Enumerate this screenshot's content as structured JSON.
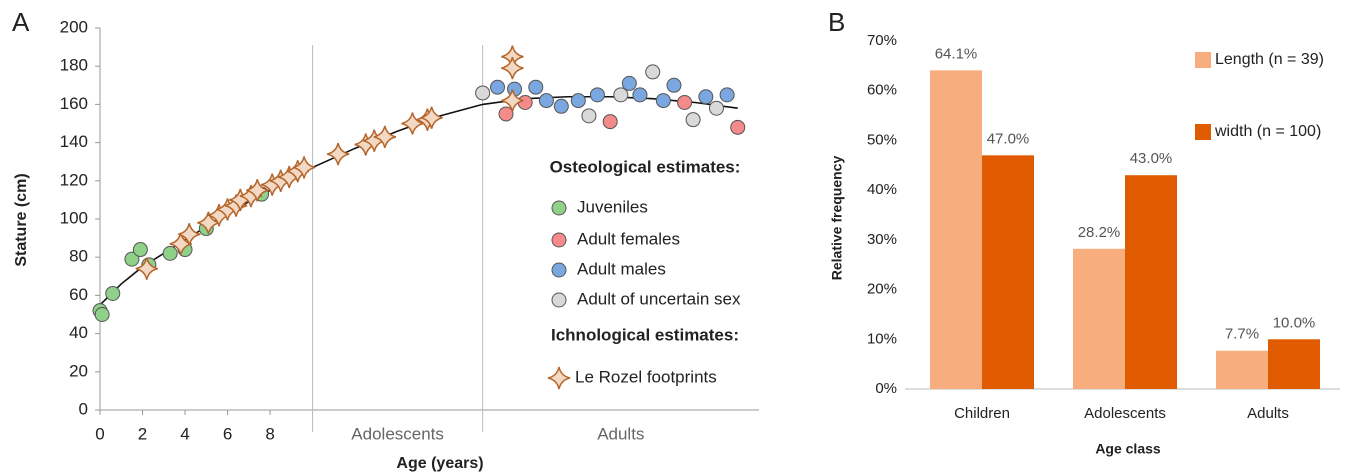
{
  "chart_data": [
    {
      "type": "scatter",
      "panel_label": "A",
      "x_label": "Age (years)",
      "y_label": "Stature (cm)",
      "xlim": [
        0,
        31
      ],
      "ylim": [
        0,
        200
      ],
      "xticks": [
        0,
        2,
        4,
        6,
        8
      ],
      "yticks": [
        0,
        20,
        40,
        60,
        80,
        100,
        120,
        140,
        160,
        180,
        200
      ],
      "dividers": [
        10,
        18
      ],
      "regions": [
        {
          "label": "Adolescents",
          "from": 10,
          "to": 18
        },
        {
          "label": "Adults",
          "from": 18,
          "to": 31
        }
      ],
      "legend_headings": [
        "Osteological estimates:",
        "Ichnological estimates:"
      ],
      "trend": {
        "x": [
          0,
          1,
          2,
          4,
          6,
          8,
          10,
          12,
          14,
          16,
          18,
          20,
          22,
          24,
          26,
          28,
          30
        ],
        "values": [
          55,
          66,
          75,
          89,
          103,
          115,
          127,
          137,
          146,
          154,
          160,
          163,
          164,
          164,
          163,
          161,
          158
        ]
      },
      "series": [
        {
          "name": "Juveniles",
          "color": "#8fd18a",
          "marker": "circle",
          "x": [
            0,
            0.1,
            0.6,
            1.5,
            1.9,
            2.3,
            3.3,
            4.0,
            5.0,
            7.6
          ],
          "values": [
            52,
            50,
            61,
            79,
            84,
            76,
            82,
            84,
            95,
            113
          ]
        },
        {
          "name": "Adult females",
          "color": "#f58a8a",
          "marker": "circle",
          "x": [
            19.1,
            20.0,
            24.0,
            27.5,
            30.0
          ],
          "values": [
            155,
            161,
            151,
            161,
            148
          ]
        },
        {
          "name": "Adult males",
          "color": "#7ba7e0",
          "marker": "circle",
          "x": [
            18.7,
            19.5,
            20.5,
            21.0,
            21.7,
            22.5,
            23.4,
            24.9,
            25.4,
            26.5,
            27.0,
            28.5,
            29.5
          ],
          "values": [
            169,
            168,
            169,
            162,
            159,
            162,
            165,
            171,
            165,
            162,
            170,
            164,
            165
          ]
        },
        {
          "name": "Adult of uncertain sex",
          "color": "#d9d9d9",
          "marker": "circle",
          "x": [
            18.0,
            23.0,
            24.5,
            26.0,
            27.9,
            29.0
          ],
          "values": [
            166,
            154,
            165,
            177,
            152,
            158
          ]
        },
        {
          "name": "Le Rozel  footprints",
          "color": "#f3d9c4",
          "marker": "star",
          "x": [
            2.2,
            3.8,
            4.2,
            5.1,
            5.6,
            6.0,
            6.4,
            6.6,
            7.1,
            7.4,
            8.1,
            8.5,
            8.9,
            9.3,
            9.6,
            11.2,
            12.5,
            12.9,
            13.4,
            14.7,
            15.4,
            15.6,
            19.4,
            19.4,
            19.4
          ],
          "values": [
            74,
            87,
            92,
            98,
            102,
            105,
            107,
            110,
            112,
            115,
            118,
            120,
            122,
            125,
            127,
            134,
            139,
            141,
            143,
            150,
            152,
            153,
            185,
            179,
            162
          ]
        }
      ]
    },
    {
      "type": "bar",
      "panel_label": "B",
      "x_label": "Age class",
      "y_label": "Relative frequency",
      "categories": [
        "Children",
        "Adolescents",
        "Adults"
      ],
      "ylim": [
        0,
        70
      ],
      "yticks": [
        {
          "value": 0,
          "label": "0%"
        },
        {
          "value": 10,
          "label": "10%"
        },
        {
          "value": 20,
          "label": "20%"
        },
        {
          "value": 30,
          "label": "30%"
        },
        {
          "value": 40,
          "label": "40%"
        },
        {
          "value": 50,
          "label": "50%"
        },
        {
          "value": 60,
          "label": "60%"
        },
        {
          "value": 70,
          "label": "70%"
        }
      ],
      "series": [
        {
          "name": "Length (n = 39)",
          "color": "#f8ad7f",
          "values": [
            64.1,
            28.2,
            7.7
          ],
          "value_labels": [
            "64.1%",
            "28.2%",
            "7.7%"
          ]
        },
        {
          "name": "width (n = 100)",
          "color": "#e05a00",
          "values": [
            47.0,
            43.0,
            10.0
          ],
          "value_labels": [
            "47.0%",
            "43.0%",
            "10.0%"
          ]
        }
      ]
    }
  ]
}
